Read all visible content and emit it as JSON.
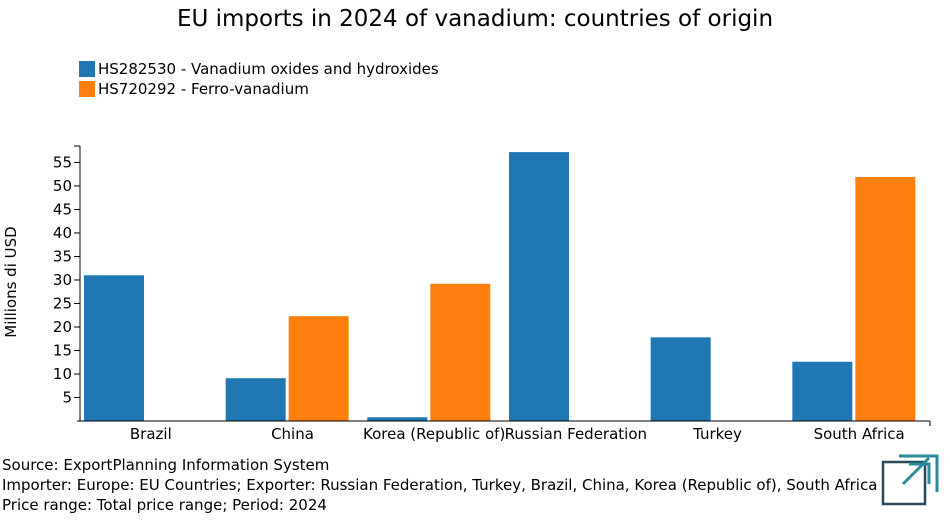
{
  "title": "EU imports in 2024 of vanadium: countries of origin",
  "colors": {
    "series1": "#1f77b4",
    "series2": "#ff7f0e",
    "logo": "#2b8a99",
    "logo_dark": "#274a5a"
  },
  "footer": {
    "source": "Source: ExportPlanning Information System",
    "importer": "Importer: Europe: EU Countries; Exporter: Russian Federation, Turkey, Brazil, China, Korea (Republic of), South Africa",
    "price": "Price range: Total price range; Period: 2024"
  },
  "chart_data": {
    "type": "bar",
    "title": "EU imports in 2024 of vanadium: countries of origin",
    "xlabel": "",
    "ylabel": "Millions di USD",
    "ylim": [
      0,
      58.5
    ],
    "yticks": [
      5,
      10,
      15,
      20,
      25,
      30,
      35,
      40,
      45,
      50,
      55
    ],
    "grid": false,
    "legend": "top-left",
    "categories": [
      "Brazil",
      "China",
      "Korea (Republic of)",
      "Russian Federation",
      "Turkey",
      "South Africa"
    ],
    "series": [
      {
        "name": "HS282530 - Vanadium oxides and hydroxides",
        "values": [
          31.0,
          9.1,
          0.8,
          57.2,
          17.8,
          12.6
        ]
      },
      {
        "name": "HS720292 - Ferro-vanadium",
        "values": [
          0,
          22.3,
          29.2,
          0,
          0,
          51.9
        ]
      }
    ]
  }
}
